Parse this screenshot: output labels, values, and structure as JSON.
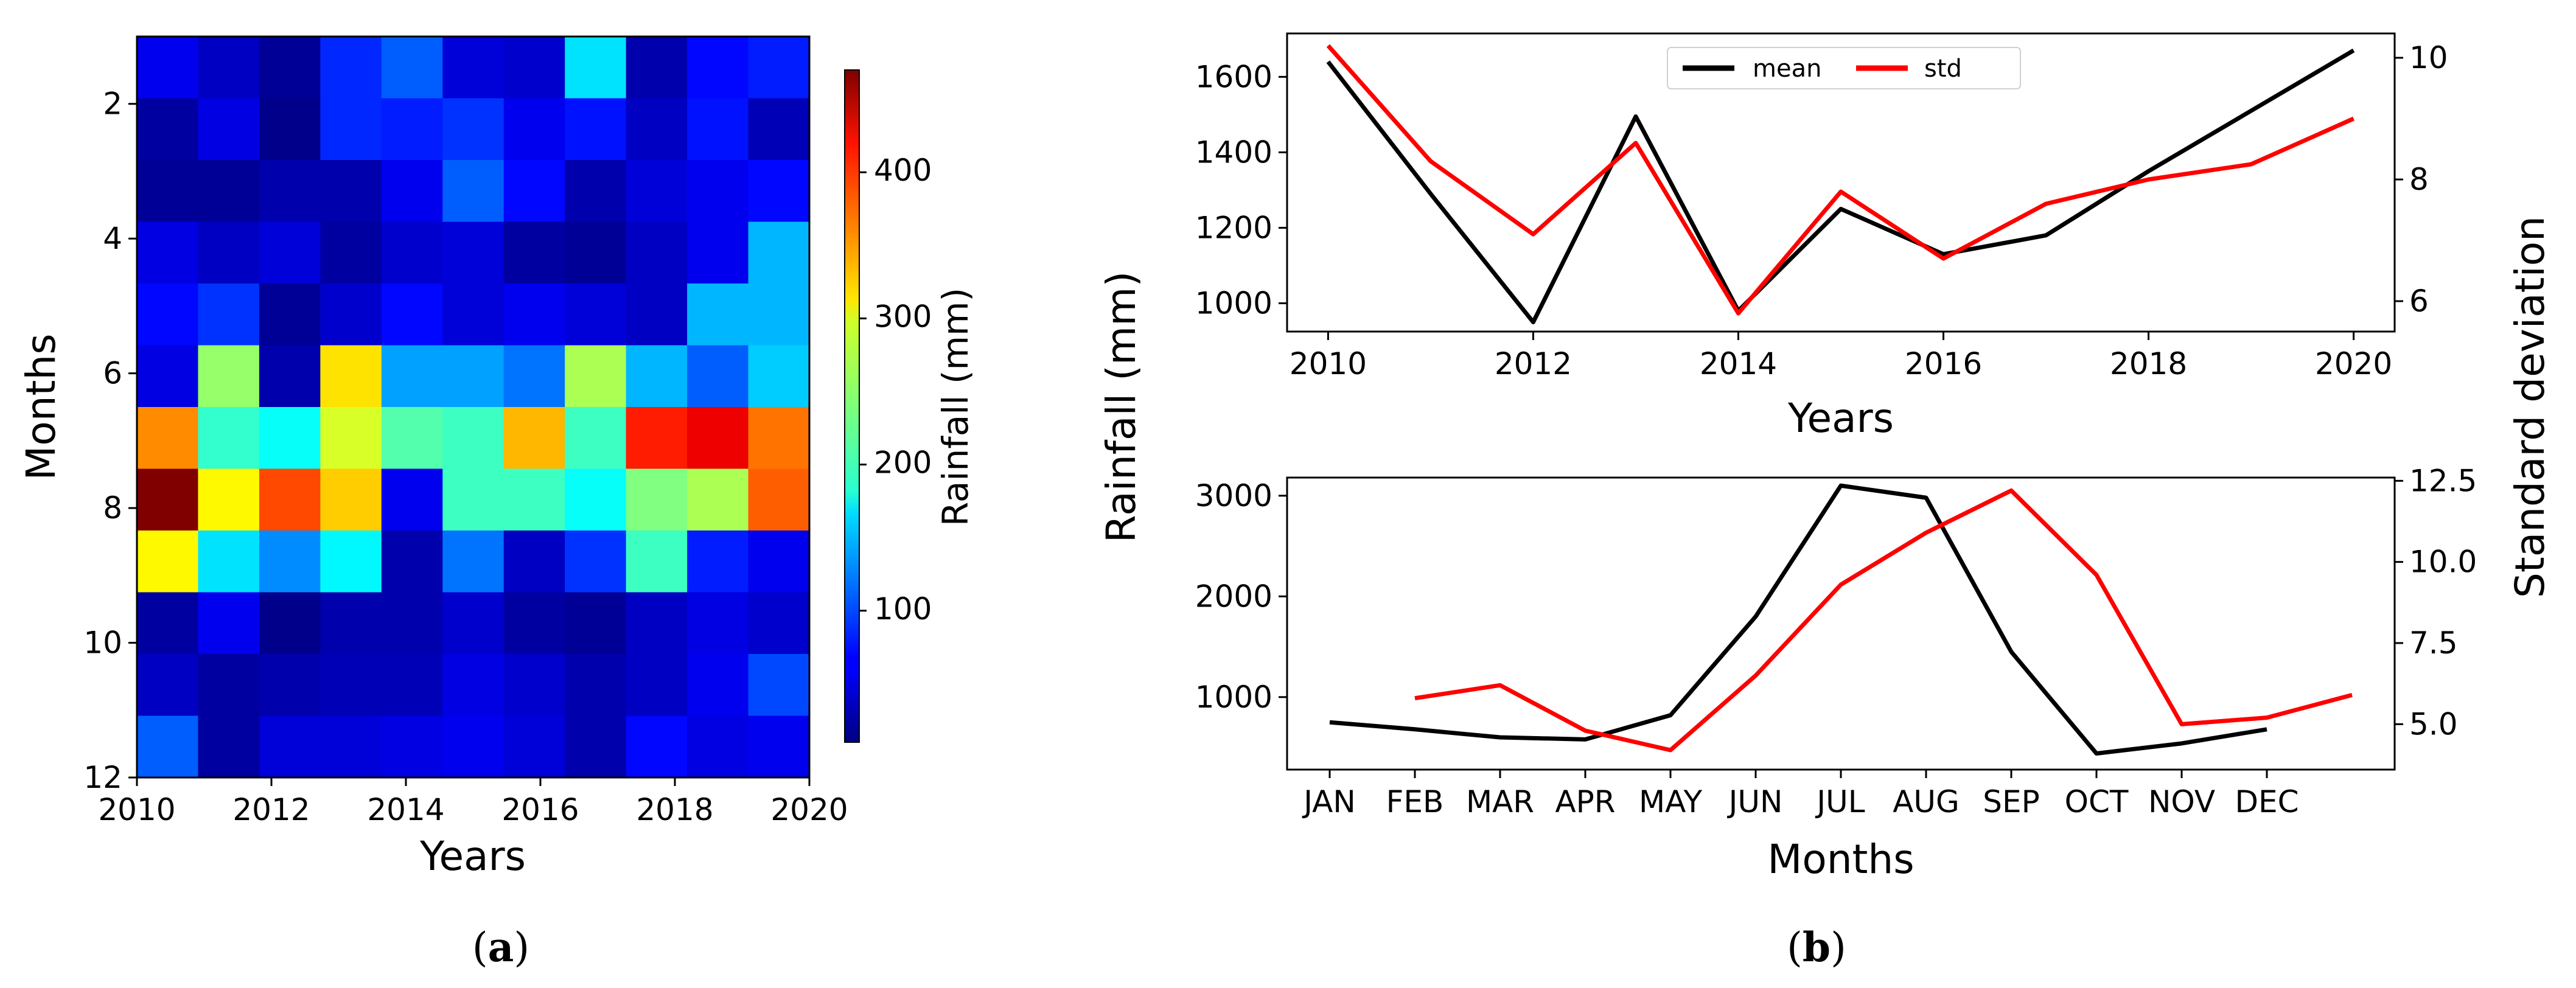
{
  "chart_data": [
    {
      "id": "a",
      "type": "heatmap",
      "panel_label": "a",
      "xlabel": "Years",
      "ylabel": "Months",
      "xlim": [
        2010,
        2020
      ],
      "ylim": [
        12,
        1
      ],
      "xticks": [
        2010,
        2012,
        2014,
        2016,
        2018,
        2020
      ],
      "yticks": [
        2,
        4,
        6,
        8,
        10,
        12
      ],
      "colorbar": {
        "label": "Rainfall (mm)",
        "range": [
          10,
          470
        ],
        "ticks": [
          100,
          200,
          300,
          400
        ],
        "colormap": "jet"
      },
      "values": [
        [
          60,
          40,
          20,
          85,
          110,
          50,
          45,
          170,
          30,
          70,
          80
        ],
        [
          25,
          55,
          15,
          85,
          80,
          90,
          60,
          75,
          40,
          75,
          35
        ],
        [
          20,
          20,
          30,
          30,
          60,
          110,
          70,
          30,
          50,
          60,
          70
        ],
        [
          55,
          40,
          50,
          25,
          45,
          50,
          25,
          20,
          40,
          60,
          150
        ],
        [
          70,
          90,
          20,
          45,
          70,
          50,
          60,
          50,
          40,
          150,
          150
        ],
        [
          55,
          250,
          30,
          310,
          140,
          140,
          120,
          260,
          150,
          110,
          160
        ],
        [
          350,
          205,
          185,
          280,
          220,
          210,
          330,
          210,
          400,
          420,
          360
        ],
        [
          470,
          300,
          380,
          320,
          60,
          210,
          210,
          185,
          240,
          260,
          370
        ],
        [
          300,
          170,
          130,
          180,
          30,
          120,
          40,
          90,
          210,
          80,
          60
        ],
        [
          25,
          60,
          15,
          30,
          30,
          45,
          25,
          20,
          40,
          55,
          45
        ],
        [
          40,
          25,
          30,
          35,
          35,
          55,
          45,
          30,
          40,
          60,
          100
        ],
        [
          110,
          25,
          50,
          50,
          55,
          60,
          50,
          30,
          70,
          55,
          60
        ]
      ]
    },
    {
      "id": "b_top",
      "type": "line",
      "panel_label": "b",
      "xlabel": "Years",
      "ylabel": "Rainfall (mm)",
      "ylabel_right": "Standard deviation",
      "x": [
        2010,
        2011,
        2012,
        2013,
        2014,
        2015,
        2016,
        2017,
        2018,
        2019,
        2020
      ],
      "xlim": [
        2009.6,
        2020.4
      ],
      "ylim": [
        925,
        1715
      ],
      "ylim_right": [
        5.5,
        10.4
      ],
      "xticks": [
        2010,
        2012,
        2014,
        2016,
        2018,
        2020
      ],
      "yticks": [
        1000,
        1200,
        1400,
        1600
      ],
      "yticks_right": [
        6,
        8,
        10
      ],
      "legend": {
        "position": "top-center",
        "entries": [
          "mean",
          "std"
        ]
      },
      "series": [
        {
          "name": "mean",
          "color": "#000000",
          "axis": "left",
          "values": [
            1640,
            1290,
            950,
            1495,
            980,
            1250,
            1130,
            1180,
            1350,
            1510,
            1670
          ]
        },
        {
          "name": "std",
          "color": "#ff0000",
          "axis": "right",
          "values": [
            10.2,
            8.3,
            7.1,
            8.6,
            5.8,
            7.8,
            6.7,
            7.6,
            8.0,
            8.25,
            9.0
          ]
        }
      ]
    },
    {
      "id": "b_bottom",
      "type": "line",
      "xlabel": "Months",
      "ylabel_right": "Standard deviation",
      "categories": [
        "JAN",
        "FEB",
        "MAR",
        "APR",
        "MAY",
        "JUN",
        "JUL",
        "AUG",
        "SEP",
        "OCT",
        "NOV",
        "DEC"
      ],
      "xlim": [
        -0.5,
        12.5
      ],
      "ylim": [
        280,
        3180
      ],
      "ylim_right": [
        3.6,
        12.6
      ],
      "yticks": [
        1000,
        2000,
        3000
      ],
      "yticks_right": [
        5.0,
        7.5,
        10.0,
        12.5
      ],
      "series": [
        {
          "name": "mean",
          "color": "#000000",
          "axis": "left",
          "x": [
            0,
            1,
            2,
            3,
            4,
            5,
            6,
            7,
            8,
            9,
            10,
            11
          ],
          "values": [
            750,
            680,
            600,
            580,
            820,
            1800,
            3100,
            2980,
            1450,
            440,
            540,
            680
          ]
        },
        {
          "name": "std",
          "color": "#ff0000",
          "axis": "right",
          "x": [
            1,
            2,
            3,
            4,
            5,
            6,
            7,
            8,
            9,
            10,
            11,
            12
          ],
          "values": [
            5.8,
            6.2,
            4.8,
            4.2,
            6.5,
            9.3,
            10.9,
            12.2,
            9.6,
            5.0,
            5.2,
            5.9
          ]
        }
      ]
    }
  ]
}
